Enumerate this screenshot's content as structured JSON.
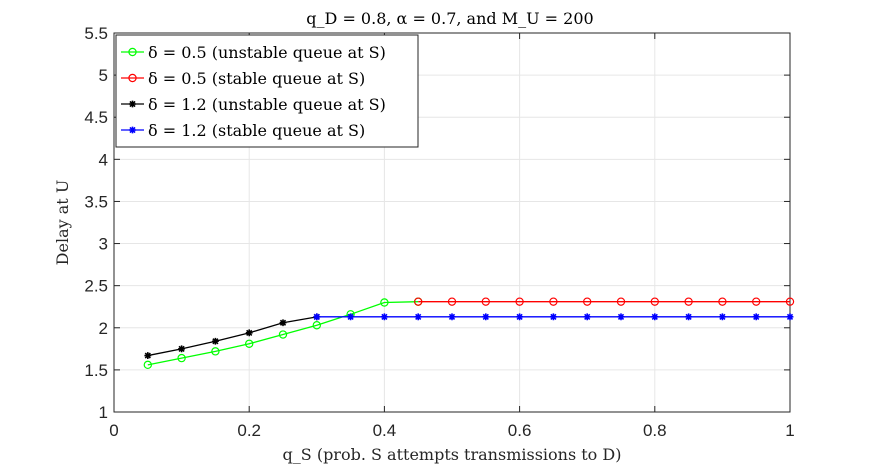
{
  "chart_data": {
    "type": "line",
    "title": "q_D = 0.8, α = 0.7, and M_U = 200",
    "xlabel": "q_S (prob. S attempts transmissions to D)",
    "ylabel": "Delay at U",
    "xlim": [
      0,
      1
    ],
    "ylim": [
      1,
      5.5
    ],
    "xticks": [
      "0",
      "0.2",
      "0.4",
      "0.6",
      "0.8",
      "1"
    ],
    "xtick_values": [
      0,
      0.2,
      0.4,
      0.6,
      0.8,
      1
    ],
    "yticks": [
      "1",
      "1.5",
      "2",
      "2.5",
      "3",
      "3.5",
      "4",
      "4.5",
      "5",
      "5.5"
    ],
    "ytick_values": [
      1,
      1.5,
      2,
      2.5,
      3,
      3.5,
      4,
      4.5,
      5,
      5.5
    ],
    "grid": true,
    "legend_position": "top-left",
    "series": [
      {
        "name": "δ = 0.5 (unstable queue at S)",
        "color": "#00ff00",
        "marker": "circle",
        "x": [
          0.05,
          0.1,
          0.15,
          0.2,
          0.25,
          0.3,
          0.35,
          0.4,
          0.45
        ],
        "y": [
          1.56,
          1.64,
          1.72,
          1.81,
          1.92,
          2.03,
          2.16,
          2.3,
          2.31
        ]
      },
      {
        "name": "δ = 0.5 (stable queue at S)",
        "color": "#ff0000",
        "marker": "circle",
        "x": [
          0.45,
          0.5,
          0.55,
          0.6,
          0.65,
          0.7,
          0.75,
          0.8,
          0.85,
          0.9,
          0.95,
          1.0
        ],
        "y": [
          2.31,
          2.31,
          2.31,
          2.31,
          2.31,
          2.31,
          2.31,
          2.31,
          2.31,
          2.31,
          2.31,
          2.31
        ]
      },
      {
        "name": "δ = 1.2 (unstable queue at S)",
        "color": "#000000",
        "marker": "star",
        "x": [
          0.05,
          0.1,
          0.15,
          0.2,
          0.25,
          0.3
        ],
        "y": [
          1.67,
          1.75,
          1.84,
          1.94,
          2.06,
          2.13
        ]
      },
      {
        "name": "δ = 1.2 (stable queue at S)",
        "color": "#0000ff",
        "marker": "star",
        "x": [
          0.3,
          0.35,
          0.4,
          0.45,
          0.5,
          0.55,
          0.6,
          0.65,
          0.7,
          0.75,
          0.8,
          0.85,
          0.9,
          0.95,
          1.0
        ],
        "y": [
          2.13,
          2.13,
          2.13,
          2.13,
          2.13,
          2.13,
          2.13,
          2.13,
          2.13,
          2.13,
          2.13,
          2.13,
          2.13,
          2.13,
          2.13
        ]
      }
    ]
  }
}
